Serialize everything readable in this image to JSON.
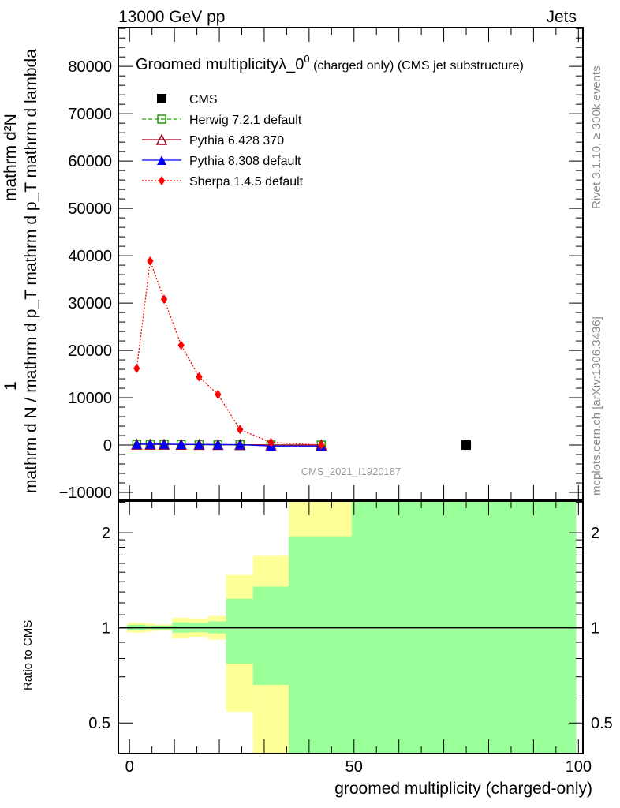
{
  "header": {
    "left": "13000 GeV pp",
    "right": "Jets"
  },
  "side_labels": {
    "rivet": "Rivet 3.1.10, ≥ 300k events",
    "mcplots": "mcplots.cern.ch [arXiv:1306.3436]"
  },
  "watermark": "CMS_2021_I1920187",
  "chart_data": [
    {
      "type": "line",
      "title": "Groomed multiplicityλ_0",
      "title_sup": "0",
      "title_suffix": " (charged only)",
      "title_tail": " (CMS jet substructure)",
      "ylabel_parts": [
        "1",
        "mathrm d²N",
        "mathrm d N / mathrm d p_T mathrm d p_T mathrm d lambda"
      ],
      "xlim": [
        -2.5,
        101
      ],
      "ylim": [
        -11500,
        88200
      ],
      "yticks": [
        -10000,
        0,
        10000,
        20000,
        30000,
        40000,
        50000,
        60000,
        70000,
        80000
      ],
      "ytick_labels": [
        "−10000",
        "0",
        "10000",
        "20000",
        "30000",
        "40000",
        "50000",
        "60000",
        "70000",
        "80000"
      ],
      "legend_position": "top-left",
      "series": [
        {
          "name": "CMS",
          "color": "#000000",
          "marker": "filled-square",
          "line": "none",
          "x": [
            75
          ],
          "y": [
            0
          ]
        },
        {
          "name": "Herwig 7.2.1 default",
          "color": "#22a000",
          "marker": "open-square",
          "line": "dashed",
          "x": [
            1.6,
            4.6,
            7.7,
            11.5,
            15.5,
            19.7,
            24.6,
            31.5,
            42.7
          ],
          "y": [
            150,
            150,
            150,
            120,
            100,
            80,
            60,
            20,
            0
          ]
        },
        {
          "name": "Pythia 6.428 370",
          "color": "#a00020",
          "marker": "open-triangle",
          "line": "solid",
          "x": [
            1.6,
            4.6,
            7.7,
            11.5,
            15.5,
            19.7,
            24.6,
            31.5,
            42.7
          ],
          "y": [
            150,
            150,
            150,
            120,
            100,
            80,
            60,
            20,
            0
          ]
        },
        {
          "name": "Pythia 8.308 default",
          "color": "#0000ff",
          "marker": "filled-triangle",
          "line": "solid",
          "x": [
            1.6,
            4.6,
            7.7,
            11.5,
            15.5,
            19.7,
            24.6,
            31.5,
            42.7
          ],
          "y": [
            200,
            200,
            200,
            150,
            120,
            100,
            80,
            -200,
            -200
          ]
        },
        {
          "name": "Sherpa 1.4.5 default",
          "color": "#ff0000",
          "marker": "filled-diamond",
          "line": "dotted",
          "x": [
            1.6,
            4.6,
            7.7,
            11.5,
            15.5,
            19.7,
            24.6,
            31.5,
            42.7
          ],
          "y": [
            16200,
            38900,
            30800,
            21100,
            14400,
            10700,
            3300,
            550,
            0
          ]
        }
      ]
    },
    {
      "type": "area",
      "ylabel": "Ratio to CMS",
      "xlabel": "groomed multiplicity (charged-only)",
      "xlim": [
        -2.5,
        101
      ],
      "ylim": [
        0.4,
        2.52
      ],
      "yscale": "log",
      "yticks": [
        0.5,
        1,
        2
      ],
      "ytick_labels": [
        "0.5",
        "1",
        "2"
      ],
      "xticks": [
        0,
        50,
        100
      ],
      "xtick_labels": [
        "0",
        "50",
        "100"
      ],
      "bins": [
        {
          "lo": -0.5,
          "hi": 3.5,
          "yellow": [
            0.966,
            1.039
          ],
          "green": [
            0.981,
            1.023
          ]
        },
        {
          "lo": 3.5,
          "hi": 5.5,
          "yellow": [
            0.972,
            1.033
          ],
          "green": [
            0.989,
            1.017
          ]
        },
        {
          "lo": 5.5,
          "hi": 9.5,
          "yellow": [
            0.979,
            1.025
          ],
          "green": [
            0.988,
            1.017
          ]
        },
        {
          "lo": 9.5,
          "hi": 13.5,
          "yellow": [
            0.928,
            1.077
          ],
          "green": [
            0.966,
            1.041
          ]
        },
        {
          "lo": 13.5,
          "hi": 17.5,
          "yellow": [
            0.937,
            1.071
          ],
          "green": [
            0.97,
            1.037
          ]
        },
        {
          "lo": 17.5,
          "hi": 21.5,
          "yellow": [
            0.918,
            1.09
          ],
          "green": [
            0.96,
            1.048
          ]
        },
        {
          "lo": 21.5,
          "hi": 27.5,
          "yellow": [
            0.543,
            1.47
          ],
          "green": [
            0.77,
            1.236
          ]
        },
        {
          "lo": 27.5,
          "hi": 35.5,
          "yellow": [
            0.3,
            1.69
          ],
          "green": [
            0.66,
            1.35
          ]
        },
        {
          "lo": 35.5,
          "hi": 49.5,
          "yellow": [
            0.3,
            3.0
          ],
          "green": [
            0.3,
            1.95
          ]
        },
        {
          "lo": 49.5,
          "hi": 99.5,
          "yellow": [
            0.3,
            3.0
          ],
          "green": [
            0.3,
            3.0
          ]
        }
      ],
      "band_colors": {
        "yellow": "#ffff99",
        "green": "#99ff99"
      }
    }
  ]
}
